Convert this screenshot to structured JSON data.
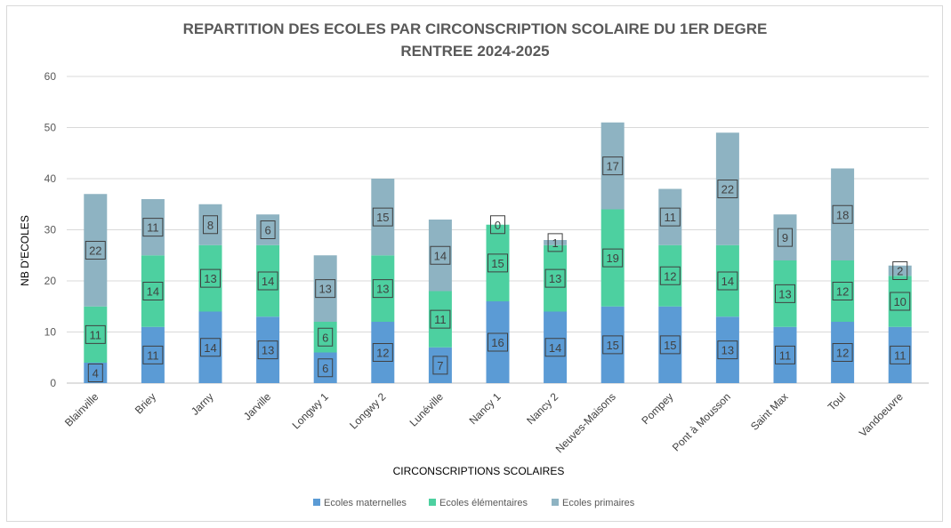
{
  "chart_data": {
    "type": "bar",
    "stacked": true,
    "title_line1": "REPARTITION DES ECOLES PAR CIRCONSCRIPTION SCOLAIRE DU 1ER DEGRE",
    "title_line2": "RENTREE 2024-2025",
    "xlabel": "CIRCONSCRIPTIONS SCOLAIRES",
    "ylabel": "NB D'ECOLES",
    "ylim": [
      0,
      60
    ],
    "yticks": [
      0,
      10,
      20,
      30,
      40,
      50,
      60
    ],
    "grid": true,
    "legend_position": "bottom",
    "categories": [
      "Blainville",
      "Briey",
      "Jarny",
      "Jarville",
      "Longwy 1",
      "Longwy 2",
      "Lunéville",
      "Nancy 1",
      "Nancy 2",
      "Neuves-Maisons",
      "Pompey",
      "Pont à Mousson",
      "Saint Max",
      "Toul",
      "Vandoeuvre"
    ],
    "series": [
      {
        "name": "Ecoles maternelles",
        "color": "#5b9bd5",
        "values": [
          4,
          11,
          14,
          13,
          6,
          12,
          7,
          16,
          14,
          15,
          15,
          13,
          11,
          12,
          11
        ]
      },
      {
        "name": "Ecoles élémentaires",
        "color": "#4dd0a0",
        "values": [
          11,
          14,
          13,
          14,
          6,
          13,
          11,
          15,
          13,
          19,
          12,
          14,
          13,
          12,
          10
        ]
      },
      {
        "name": "Ecoles primaires",
        "color": "#8eb3c2",
        "values": [
          22,
          11,
          8,
          6,
          13,
          15,
          14,
          0,
          1,
          17,
          11,
          22,
          9,
          18,
          2
        ]
      }
    ]
  }
}
